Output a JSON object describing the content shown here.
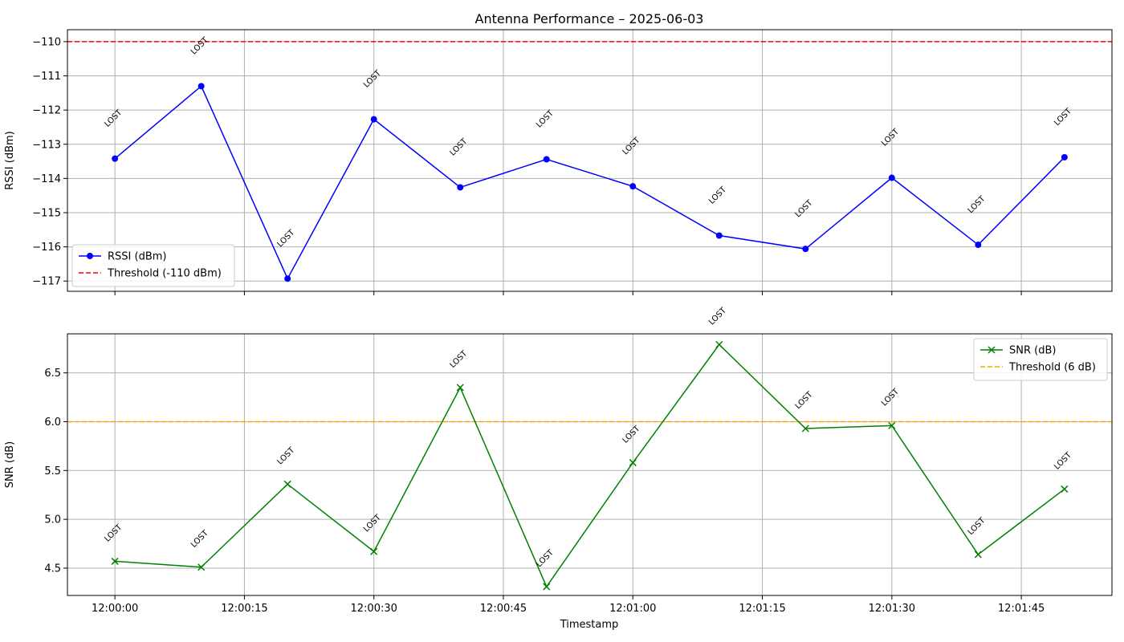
{
  "title": "Antenna Performance – 2025-06-03",
  "x_label": "Timestamp",
  "x_ticks": [
    "12:00:00",
    "12:00:15",
    "12:00:30",
    "12:00:45",
    "12:01:00",
    "12:01:15",
    "12:01:30",
    "12:01:45"
  ],
  "chart_data": [
    {
      "type": "line",
      "x": [
        0,
        10,
        20,
        30,
        40,
        50,
        60,
        70,
        80,
        90,
        100,
        110
      ],
      "x_unit": "seconds since 12:00:00",
      "xlim": [
        -5.5,
        115.5
      ],
      "ylabel": "RSSI (dBm)",
      "ylim": [
        -117.3,
        -109.65
      ],
      "yticks": [
        -110,
        -111,
        -112,
        -113,
        -114,
        -115,
        -116,
        -117
      ],
      "series": [
        {
          "name": "RSSI (dBm)",
          "color": "#0000ff",
          "marker": "circle",
          "values": [
            -113.42,
            -111.3,
            -116.93,
            -112.27,
            -114.26,
            -113.44,
            -114.23,
            -115.67,
            -116.06,
            -113.98,
            -115.94,
            -113.38
          ]
        }
      ],
      "threshold": {
        "name": "Threshold (-110 dBm)",
        "value": -110,
        "color": "#ff0000",
        "style": "dashed"
      },
      "annotations": [
        "LOST",
        "LOST",
        "LOST",
        "LOST",
        "LOST",
        "LOST",
        "LOST",
        "LOST",
        "LOST",
        "LOST",
        "LOST",
        "LOST"
      ],
      "legend": "lower-left",
      "grid": true
    },
    {
      "type": "line",
      "x": [
        0,
        10,
        20,
        30,
        40,
        50,
        60,
        70,
        80,
        90,
        100,
        110
      ],
      "x_unit": "seconds since 12:00:00",
      "xlim": [
        -5.5,
        115.5
      ],
      "ylabel": "SNR (dB)",
      "ylim": [
        4.22,
        6.9
      ],
      "yticks": [
        "4.5",
        "5.0",
        "5.5",
        "6.0",
        "6.5"
      ],
      "series": [
        {
          "name": "SNR (dB)",
          "color": "#008000",
          "marker": "x",
          "values": [
            4.57,
            4.51,
            5.36,
            4.67,
            6.35,
            4.31,
            5.58,
            6.79,
            5.93,
            5.96,
            4.64,
            5.31
          ]
        }
      ],
      "threshold": {
        "name": "Threshold (6 dB)",
        "value": 6,
        "color": "#ffa500",
        "style": "dashed"
      },
      "annotations": [
        "LOST",
        "LOST",
        "LOST",
        "LOST",
        "LOST",
        "LOST",
        "LOST",
        "LOST",
        "LOST",
        "LOST",
        "LOST",
        "LOST"
      ],
      "legend": "upper-right",
      "grid": true
    }
  ]
}
